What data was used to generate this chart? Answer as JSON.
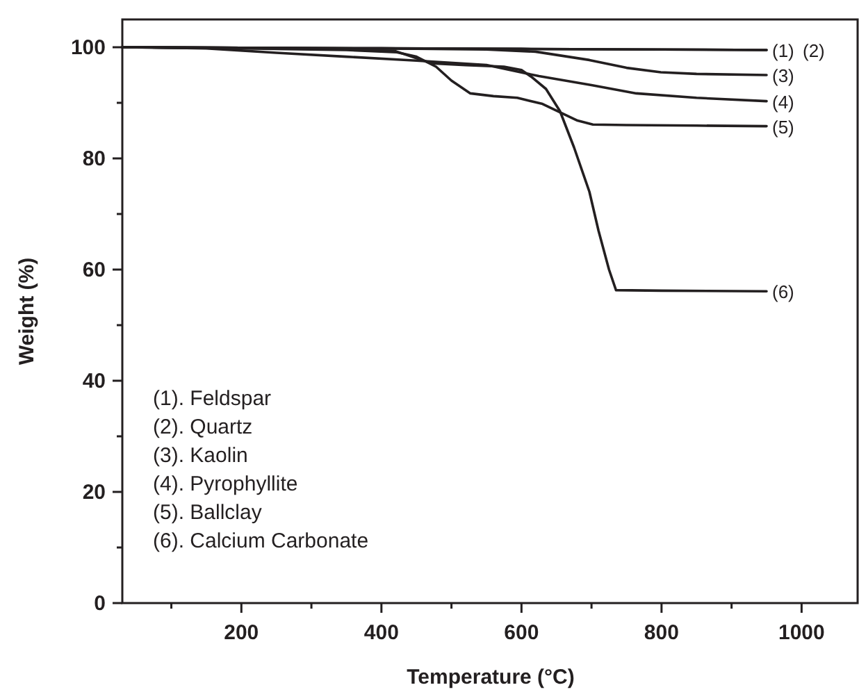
{
  "chart_data": {
    "type": "line",
    "xlabel": "Temperature (°C)",
    "ylabel": "Weight (%)",
    "xlim": [
      30,
      1080
    ],
    "ylim": [
      0,
      105
    ],
    "xticks": [
      {
        "value": 100,
        "label": null
      },
      200,
      {
        "value": 300,
        "label": null
      },
      400,
      {
        "value": 500,
        "label": null
      },
      600,
      {
        "value": 700,
        "label": null
      },
      800,
      {
        "value": 900,
        "label": null
      },
      1000
    ],
    "yticks": [
      0,
      {
        "value": 10,
        "label": null
      },
      20,
      {
        "value": 30,
        "label": null
      },
      40,
      {
        "value": 50,
        "label": null
      },
      60,
      {
        "value": 70,
        "label": null
      },
      80,
      {
        "value": 90,
        "label": null
      },
      100
    ],
    "grid": false,
    "marker": "none",
    "line_style": "solid",
    "series": [
      {
        "name": "(1)",
        "color": "#231f20",
        "x": [
          30,
          200,
          400,
          600,
          800,
          950
        ],
        "values": [
          100,
          99.9,
          99.8,
          99.7,
          99.6,
          99.5
        ]
      },
      {
        "name": "(2)",
        "color": "#231f20",
        "x": [
          30,
          200,
          400,
          600,
          800,
          950
        ],
        "values": [
          100,
          99.9,
          99.8,
          99.7,
          99.6,
          99.5
        ]
      },
      {
        "name": "(3)",
        "color": "#231f20",
        "x": [
          30,
          200,
          400,
          550,
          620,
          697,
          750,
          799,
          850,
          950
        ],
        "values": [
          100,
          99.9,
          99.8,
          99.6,
          99.2,
          97.7,
          96.3,
          95.5,
          95.2,
          95
        ]
      },
      {
        "name": "(4)",
        "color": "#231f20",
        "x": [
          30,
          150,
          250,
          350,
          450,
          550,
          625,
          700,
          764,
          850,
          950
        ],
        "values": [
          100,
          99.8,
          99,
          98.3,
          97.6,
          96.8,
          94.8,
          93.2,
          91.7,
          90.9,
          90.3
        ]
      },
      {
        "name": "(5)",
        "color": "#231f20",
        "x": [
          30,
          200,
          350,
          422,
          450,
          478,
          500,
          527,
          560,
          594,
          630,
          655,
          680,
          702,
          750,
          850,
          950
        ],
        "values": [
          100,
          99.8,
          99.5,
          99.1,
          98.3,
          96.5,
          94,
          91.7,
          91.2,
          90.9,
          89.8,
          88.3,
          86.8,
          86.1,
          86,
          85.9,
          85.8
        ]
      },
      {
        "name": "(6)",
        "color": "#231f20",
        "x": [
          30,
          200,
          350,
          420,
          472,
          520,
          575,
          600,
          614,
          635,
          655,
          675,
          697,
          710,
          725,
          735,
          800,
          950
        ],
        "values": [
          100,
          99.9,
          99.7,
          99.3,
          97.1,
          96.8,
          96.5,
          95.9,
          94.7,
          92.5,
          88.5,
          82,
          74,
          67,
          60,
          56.3,
          56.2,
          56.1
        ]
      }
    ],
    "annotations": [
      "(1). Feldspar",
      "(2). Quartz",
      "(3). Kaolin",
      "(4). Pyrophyllite",
      "(5). Ballclay",
      "(6). Calcium Carbonate"
    ]
  }
}
